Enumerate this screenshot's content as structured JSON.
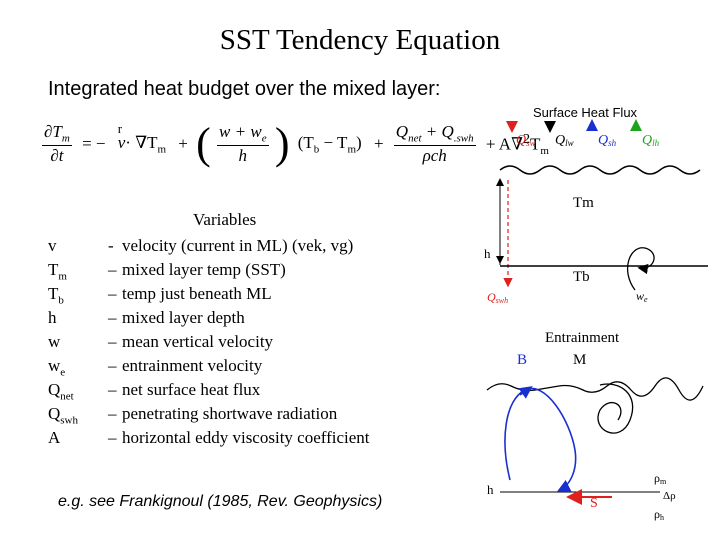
{
  "title": "SST Tendency Equation",
  "subtitle": "Integrated heat budget over the mixed layer:",
  "equation": {
    "lhs_num": "∂T",
    "lhs_num_sub": "m",
    "lhs_den": "∂t",
    "minus": "= −",
    "adv_vec": "v",
    "adv": "· ∇T",
    "adv_sub": "m",
    "plus1": "+",
    "ent_num": "w + w",
    "ent_num_sub": "e",
    "ent_den": "h",
    "bracket": "(T",
    "bracket_sub_b": "b",
    "bracket_mid": " − T",
    "bracket_sub_m": "m",
    "bracket_close": ")",
    "plus2": "+",
    "flux_num": "Q",
    "flux_num_sub1": "net",
    "flux_num_mid": " + Q",
    "flux_num_sub2": ".swh",
    "flux_den": "ρch",
    "diff": "+ A∇",
    "diff_sup": "2",
    "diff_T": "T",
    "diff_sub": "m"
  },
  "variables_title": "Variables",
  "variables": [
    {
      "sym": "v",
      "sub": "",
      "dash": "-",
      "desc": "velocity (current in ML) (vek, vg)"
    },
    {
      "sym": "T",
      "sub": "m",
      "dash": "–",
      "desc": "mixed layer temp (SST)"
    },
    {
      "sym": "T",
      "sub": "b",
      "dash": "–",
      "desc": "temp just beneath ML"
    },
    {
      "sym": "h",
      "sub": "",
      "dash": "–",
      "desc": " mixed layer depth"
    },
    {
      "sym": "w",
      "sub": "",
      "dash": "–",
      "desc": "mean vertical velocity"
    },
    {
      "sym": "w",
      "sub": "e",
      "dash": "–",
      "desc": "entrainment velocity"
    },
    {
      "sym": "Q",
      "sub": "net",
      "dash": "–",
      "desc": "net surface heat flux"
    },
    {
      "sym": "Q",
      "sub": "swh",
      "dash": "–",
      "desc": "penetrating shortwave radiation"
    },
    {
      "sym": "A",
      "sub": "",
      "dash": "–",
      "desc": "horizontal eddy viscosity coefficient"
    }
  ],
  "reference": "e.g. see Frankignoul (1985, Rev. Geophysics)",
  "diagram": {
    "surface_heat_flux": "Surface Heat Flux",
    "q_sw": "Q",
    "q_sw_sub": "sw",
    "q_lw": "Q",
    "q_lw_sub": "lw",
    "q_sh": "Q",
    "q_sh_sub": "sh",
    "q_lh": "Q",
    "q_lh_sub": "lh",
    "tm": "Tm",
    "h": "h",
    "tb": "Tb",
    "qswh": "Q",
    "qswh_sub": "swh",
    "we": "w",
    "we_sub": "e",
    "entrainment": "Entrainment",
    "b_label": "B",
    "m_label": "M",
    "h2": "h",
    "s_label": "S",
    "rho_m": "ρ",
    "rho_m_sub": "m",
    "delta_rho": "Δρ",
    "rho_h": "ρ",
    "rho_h_sub": "h",
    "colors": {
      "red": "#e0201c",
      "blue": "#1a2fd0",
      "green": "#1fa31f",
      "black": "#000000"
    }
  }
}
